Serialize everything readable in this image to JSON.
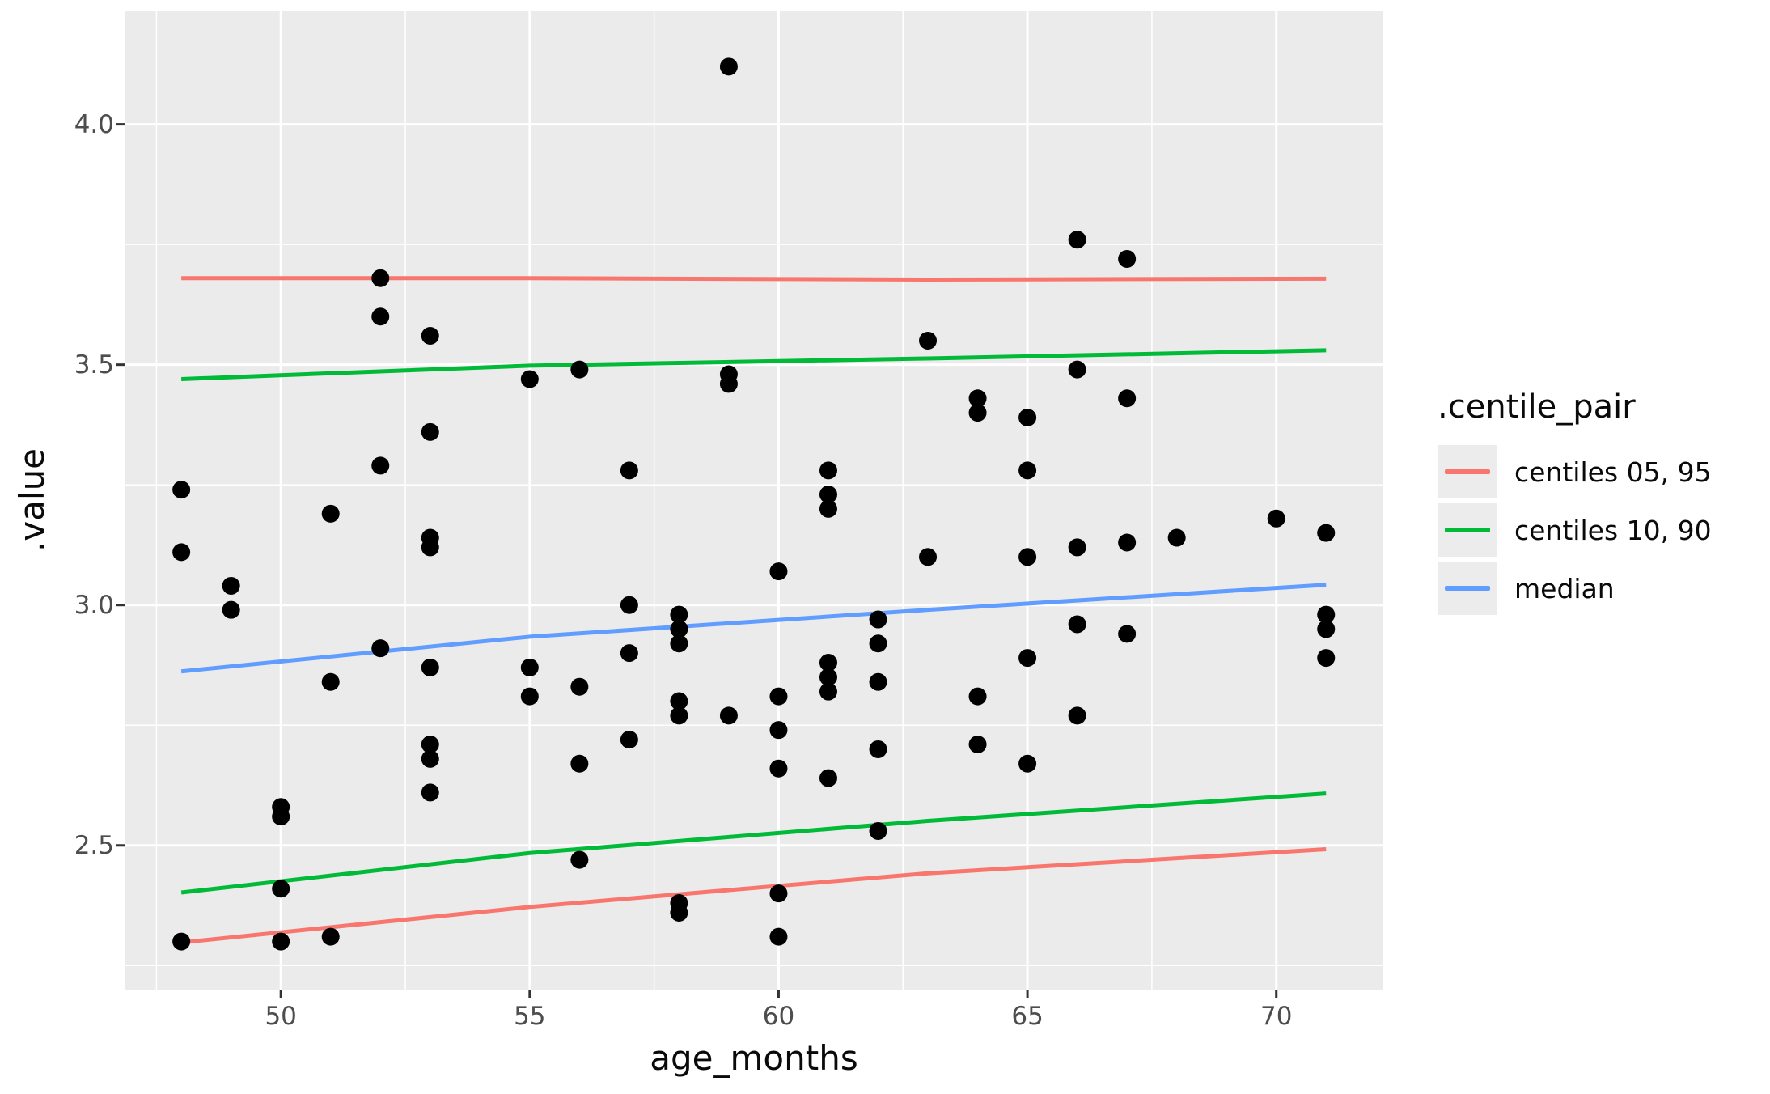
{
  "chart_data": {
    "type": "scatter",
    "title": "",
    "xlabel": "age_months",
    "ylabel": ".value",
    "xlim": [
      46.86,
      72.15
    ],
    "ylim": [
      2.2,
      4.235
    ],
    "x_ticks": [
      50,
      55,
      60,
      65,
      70
    ],
    "x_tick_labels": [
      "50",
      "55",
      "60",
      "65",
      "70"
    ],
    "x_minor_ticks": [
      47.5,
      52.5,
      57.5,
      62.5,
      67.5
    ],
    "y_ticks": [
      2.5,
      3.0,
      3.5,
      4.0
    ],
    "y_tick_labels": [
      "2.5",
      "3.0",
      "3.5",
      "4.0"
    ],
    "y_minor_ticks": [
      2.25,
      2.75,
      3.25,
      3.75
    ],
    "grid": "on",
    "panel_bg": "#EBEBEB",
    "grid_color": "#FFFFFF",
    "tick_mark_color": "#333333",
    "point_color": "#000000",
    "points": [
      [
        48,
        3.24
      ],
      [
        48,
        3.11
      ],
      [
        48,
        2.3
      ],
      [
        49,
        3.04
      ],
      [
        49,
        2.99
      ],
      [
        50,
        2.58
      ],
      [
        50,
        2.56
      ],
      [
        50,
        2.41
      ],
      [
        50,
        2.3
      ],
      [
        51,
        3.19
      ],
      [
        51,
        2.84
      ],
      [
        51,
        2.31
      ],
      [
        52,
        3.68
      ],
      [
        52,
        3.6
      ],
      [
        52,
        3.29
      ],
      [
        52,
        2.91
      ],
      [
        53,
        3.56
      ],
      [
        53,
        3.36
      ],
      [
        53,
        3.14
      ],
      [
        53,
        3.12
      ],
      [
        53,
        2.87
      ],
      [
        53,
        2.71
      ],
      [
        53,
        2.68
      ],
      [
        53,
        2.61
      ],
      [
        55,
        3.47
      ],
      [
        55,
        2.87
      ],
      [
        55,
        2.81
      ],
      [
        56,
        3.49
      ],
      [
        56,
        2.83
      ],
      [
        56,
        2.67
      ],
      [
        56,
        2.47
      ],
      [
        57,
        3.28
      ],
      [
        57,
        3.0
      ],
      [
        57,
        2.9
      ],
      [
        57,
        2.72
      ],
      [
        58,
        2.98
      ],
      [
        58,
        2.95
      ],
      [
        58,
        2.92
      ],
      [
        58,
        2.8
      ],
      [
        58,
        2.77
      ],
      [
        58,
        2.38
      ],
      [
        58,
        2.36
      ],
      [
        59,
        4.12
      ],
      [
        59,
        3.48
      ],
      [
        59,
        3.46
      ],
      [
        59,
        2.77
      ],
      [
        60,
        3.07
      ],
      [
        60,
        2.81
      ],
      [
        60,
        2.74
      ],
      [
        60,
        2.66
      ],
      [
        60,
        2.4
      ],
      [
        60,
        2.31
      ],
      [
        61,
        3.28
      ],
      [
        61,
        3.23
      ],
      [
        61,
        3.2
      ],
      [
        61,
        2.88
      ],
      [
        61,
        2.85
      ],
      [
        61,
        2.82
      ],
      [
        61,
        2.64
      ],
      [
        62,
        2.97
      ],
      [
        62,
        2.92
      ],
      [
        62,
        2.84
      ],
      [
        62,
        2.7
      ],
      [
        62,
        2.53
      ],
      [
        63,
        3.55
      ],
      [
        63,
        3.1
      ],
      [
        64,
        3.43
      ],
      [
        64,
        3.4
      ],
      [
        64,
        2.81
      ],
      [
        64,
        2.71
      ],
      [
        65,
        3.39
      ],
      [
        65,
        3.28
      ],
      [
        65,
        3.1
      ],
      [
        65,
        2.89
      ],
      [
        65,
        2.67
      ],
      [
        66,
        3.76
      ],
      [
        66,
        3.49
      ],
      [
        66,
        3.12
      ],
      [
        66,
        2.96
      ],
      [
        66,
        2.77
      ],
      [
        67,
        3.72
      ],
      [
        67,
        3.43
      ],
      [
        67,
        3.13
      ],
      [
        67,
        2.94
      ],
      [
        68,
        3.14
      ],
      [
        70,
        3.18
      ],
      [
        71,
        3.15
      ],
      [
        71,
        2.98
      ],
      [
        71,
        2.95
      ],
      [
        71,
        2.89
      ]
    ],
    "lines": [
      {
        "name": "centiles 05, 95 upper",
        "color": "#F8766D",
        "points": [
          [
            48,
            3.68
          ],
          [
            55,
            3.68
          ],
          [
            63,
            3.677
          ],
          [
            71,
            3.679
          ]
        ]
      },
      {
        "name": "centiles 10, 90 upper",
        "color": "#00BA38",
        "points": [
          [
            48,
            3.47
          ],
          [
            55,
            3.498
          ],
          [
            63,
            3.513
          ],
          [
            71,
            3.53
          ]
        ]
      },
      {
        "name": "median",
        "color": "#619CFF",
        "points": [
          [
            48,
            2.862
          ],
          [
            55,
            2.934
          ],
          [
            63,
            2.99
          ],
          [
            71,
            3.042
          ]
        ]
      },
      {
        "name": "centiles 10, 90 lower",
        "color": "#00BA38",
        "points": [
          [
            48,
            2.402
          ],
          [
            55,
            2.484
          ],
          [
            63,
            2.551
          ],
          [
            71,
            2.608
          ]
        ]
      },
      {
        "name": "centiles 05, 95 lower",
        "color": "#F8766D",
        "points": [
          [
            48,
            2.298
          ],
          [
            55,
            2.372
          ],
          [
            63,
            2.442
          ],
          [
            71,
            2.492
          ]
        ]
      }
    ],
    "legend": {
      "title": ".centile_pair",
      "position": "right",
      "key_bg": "#ECECEC",
      "entries": [
        {
          "label": "centiles 05, 95",
          "color": "#F8766D"
        },
        {
          "label": "centiles 10, 90",
          "color": "#00BA38"
        },
        {
          "label": "median",
          "color": "#619CFF"
        }
      ]
    }
  }
}
